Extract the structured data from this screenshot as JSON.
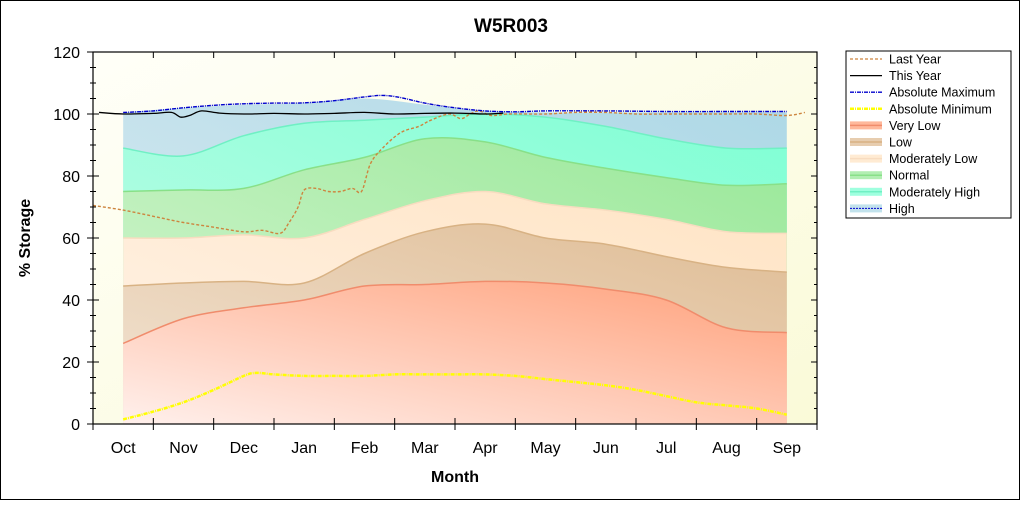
{
  "chart_data": {
    "type": "area",
    "title": "W5R003",
    "xlabel": "Month",
    "ylabel": "% Storage",
    "ylim": [
      0,
      120
    ],
    "yticks": [
      0,
      20,
      40,
      60,
      80,
      100,
      120
    ],
    "categories": [
      "Oct",
      "Nov",
      "Dec",
      "Jan",
      "Feb",
      "Mar",
      "Apr",
      "May",
      "Jun",
      "Jul",
      "Aug",
      "Sep"
    ],
    "legend_position": "right",
    "bands": [
      {
        "name": "Very Low",
        "color_top": "#ffa07a",
        "color_bottom": "#fff0ec",
        "edge": "#f08c6c",
        "top": [
          26,
          34,
          37.5,
          40,
          44.5,
          45,
          46,
          45.5,
          43.5,
          40,
          31,
          29.5
        ]
      },
      {
        "name": "Low",
        "color_top": "#dfbc94",
        "color_bottom": "#f2e4d4",
        "edge": "#d8b284",
        "top": [
          44.5,
          45.5,
          46,
          45.5,
          55,
          62,
          64.5,
          60,
          58,
          54,
          50.5,
          49
        ]
      },
      {
        "name": "Moderately Low",
        "color_top": "#ffe4c4",
        "color_bottom": "#fff3e8",
        "edge": "#f8dcc0",
        "top": [
          60,
          60,
          61,
          60,
          66,
          72,
          75,
          71,
          69,
          66,
          62,
          61.5
        ]
      },
      {
        "name": "Normal",
        "color_top": "#98e898",
        "color_bottom": "#d8f6d4",
        "edge": "#88e088",
        "top": [
          75,
          75.5,
          76,
          82,
          86,
          92,
          91,
          86,
          82.5,
          79.5,
          77,
          77.5
        ]
      },
      {
        "name": "Moderately High",
        "color_top": "#7fffd4",
        "color_bottom": "#c4fce8",
        "edge": "#70f0c4",
        "top": [
          89,
          86.5,
          93,
          97,
          98,
          99,
          100,
          99,
          96,
          92,
          89,
          89
        ]
      },
      {
        "name": "High",
        "color_top": "#add8e6",
        "color_bottom": "#dcecf2",
        "edge": "#0000cd",
        "top": [
          100.5,
          102,
          103,
          103.5,
          105,
          103,
          101,
          100.5,
          100.5,
          100.5,
          100.5,
          100.5
        ]
      }
    ],
    "series": [
      {
        "name": "Last Year",
        "color": "#cd853f",
        "style": "dash",
        "x": [
          -0.5,
          0,
          0.5,
          1,
          1.5,
          2,
          2.3,
          2.6,
          2.75,
          2.9,
          3.0,
          3.2,
          3.4,
          3.6,
          3.8,
          3.95,
          4.1,
          4.3,
          4.6,
          4.9,
          5.1,
          5.4,
          5.6,
          5.75,
          5.9,
          6.1,
          6.4,
          7,
          7.5,
          8,
          8.5,
          9,
          9.5,
          10,
          10.5,
          11,
          11.3
        ],
        "y": [
          70.5,
          69,
          67,
          65,
          63.5,
          62,
          62.5,
          61.5,
          65,
          70,
          75.5,
          76,
          75,
          75,
          76,
          75,
          84,
          89,
          94,
          96,
          98,
          100,
          98.5,
          100,
          101,
          99.5,
          100,
          100,
          100.5,
          100.5,
          100,
          100,
          100,
          100,
          100,
          99.5,
          100.5
        ]
      },
      {
        "name": "This Year",
        "color": "#000000",
        "style": "solid",
        "x": [
          -0.4,
          0,
          0.5,
          0.8,
          0.95,
          1.1,
          1.3,
          1.6,
          2,
          2.5,
          3,
          3.5,
          4,
          4.5,
          5,
          5.5,
          6,
          6.3
        ],
        "y": [
          100.5,
          100,
          100.2,
          100.5,
          99,
          99.5,
          101,
          100.3,
          100,
          100.2,
          100,
          100.2,
          100.5,
          100,
          100.2,
          100.3,
          100,
          100.3
        ]
      },
      {
        "name": "Absolute Maximum",
        "color": "#0000cd",
        "style": "dashdot",
        "x": [
          0,
          0.5,
          1,
          1.5,
          2,
          2.5,
          3,
          3.5,
          4,
          4.3,
          4.6,
          5,
          5.5,
          6,
          6.5,
          7,
          8,
          9,
          10,
          11
        ],
        "y": [
          100.5,
          101,
          102,
          102.8,
          103.3,
          103.5,
          103.6,
          104.3,
          105.5,
          106,
          105.3,
          103.5,
          102,
          101,
          100.7,
          101,
          101,
          100.8,
          100.8,
          100.8
        ]
      },
      {
        "name": "Absolute Minimum",
        "color": "#ffff00",
        "style": "dashdot",
        "x": [
          0,
          0.5,
          1,
          1.5,
          2,
          2.2,
          2.5,
          3,
          3.5,
          4,
          4.5,
          5,
          5.5,
          6,
          6.5,
          7,
          7.5,
          8,
          8.5,
          9,
          9.5,
          10,
          10.5,
          11
        ],
        "y": [
          1.5,
          4,
          7,
          11,
          15.5,
          16.5,
          16,
          15.5,
          15.5,
          15.5,
          16,
          16,
          16,
          16,
          15.5,
          14.5,
          13.5,
          12.5,
          11,
          9,
          7,
          6,
          5,
          3
        ]
      }
    ],
    "legend": [
      "Last Year",
      "This Year",
      "Absolute Maximum",
      "Absolute Minimum",
      "Very Low",
      "Low",
      "Moderately Low",
      "Normal",
      "Moderately High",
      "High"
    ]
  }
}
